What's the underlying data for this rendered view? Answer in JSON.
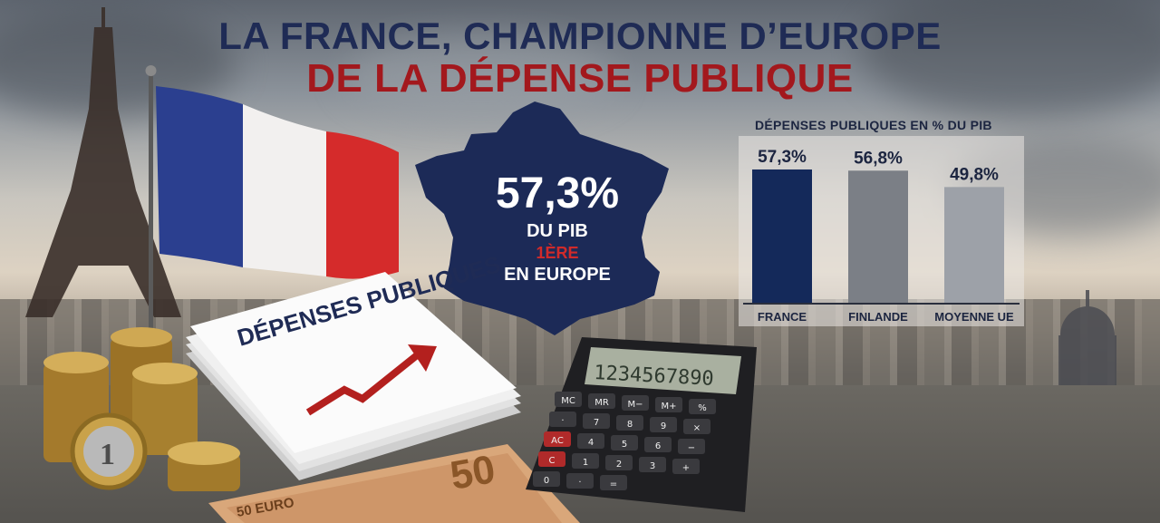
{
  "header": {
    "title_line1": "LA FRANCE, CHAMPIONNE D’EUROPE",
    "title_line2": "DE LA DÉPENSE PUBLIQUE"
  },
  "map_callout": {
    "value": "57,3%",
    "unit": "DU PIB",
    "rank": "1ÈRE",
    "scope": "EN EUROPE"
  },
  "props": {
    "document_text": "DÉPENSES PUBLIQUES",
    "calculator_display": "1234567890",
    "calculator_keys": [
      "MC",
      "MR",
      "M−",
      "M+",
      "%",
      "·",
      "7",
      "8",
      "9",
      "×",
      "AC",
      "4",
      "5",
      "6",
      "−",
      "C",
      "1",
      "2",
      "3",
      "+",
      "0",
      "·",
      "="
    ],
    "banknote_text": "50 EURO",
    "banknote_value": "50",
    "coin_text": "1"
  },
  "colors": {
    "france": "#14295a",
    "finlande": "#7b7f86",
    "moyenne_ue": "#9da1a8",
    "title_blue": "#1f2b55",
    "title_red": "#a3181d",
    "flag_blue": "#2b3f8f",
    "flag_red": "#d52b2b"
  },
  "chart_data": {
    "type": "bar",
    "title": "DÉPENSES PUBLIQUES EN % DU PIB",
    "categories": [
      "FRANCE",
      "FINLANDE",
      "MOYENNE UE"
    ],
    "values": [
      57.3,
      56.8,
      49.8
    ],
    "value_labels": [
      "57,3%",
      "56,8%",
      "49,8%"
    ],
    "ylim": [
      0,
      60
    ],
    "grid": false,
    "legend": "none"
  }
}
